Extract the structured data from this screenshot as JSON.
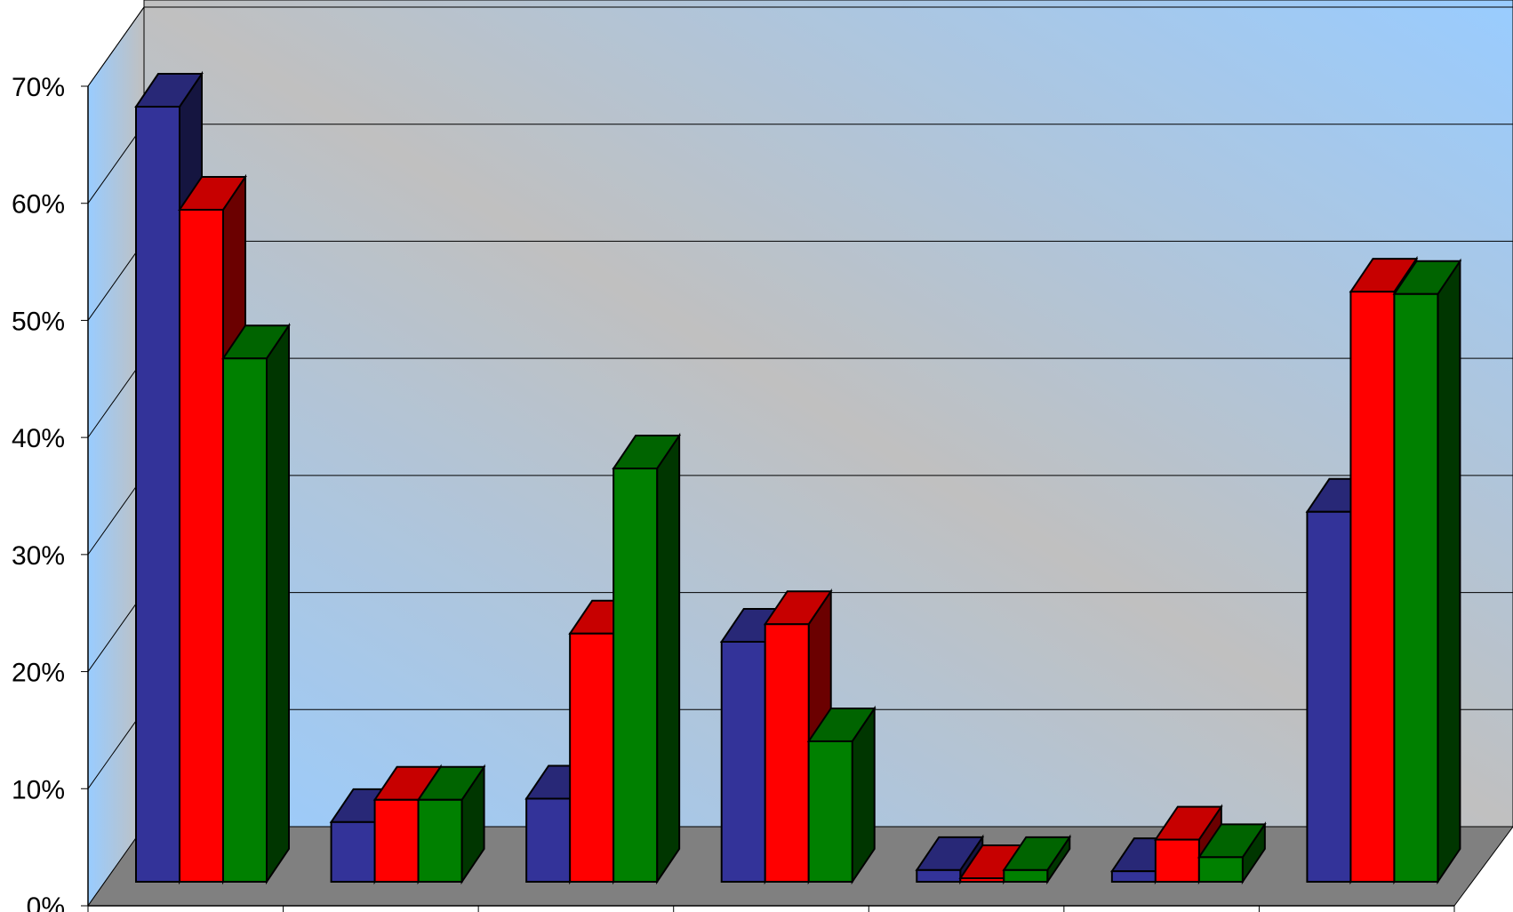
{
  "chart_data": {
    "type": "bar",
    "title": "",
    "xlabel": "",
    "ylabel": "",
    "y_tick_labels": [
      "0%",
      "10%",
      "20%",
      "30%",
      "40%",
      "50%",
      "60%",
      "70%"
    ],
    "ylim": [
      0,
      70
    ],
    "y_unit": "%",
    "grid": true,
    "view": "3d-clustered",
    "categories": [
      "",
      "",
      "",
      "",
      "",
      "",
      ""
    ],
    "series": [
      {
        "color": "#333399",
        "values": [
          66.2,
          5.1,
          7.1,
          20.5,
          1.0,
          0.9,
          31.6
        ]
      },
      {
        "color": "#ff0000",
        "values": [
          57.4,
          7.0,
          21.2,
          22.0,
          0.3,
          3.6,
          50.4
        ]
      },
      {
        "color": "#008000",
        "values": [
          44.7,
          7.0,
          35.3,
          12.0,
          1.0,
          2.1,
          50.2
        ]
      }
    ]
  },
  "colors": {
    "back_wall_light": "#99ccff",
    "back_wall_dark": "#c0c0c0",
    "floor": "#808080",
    "gridline": "#000000"
  }
}
